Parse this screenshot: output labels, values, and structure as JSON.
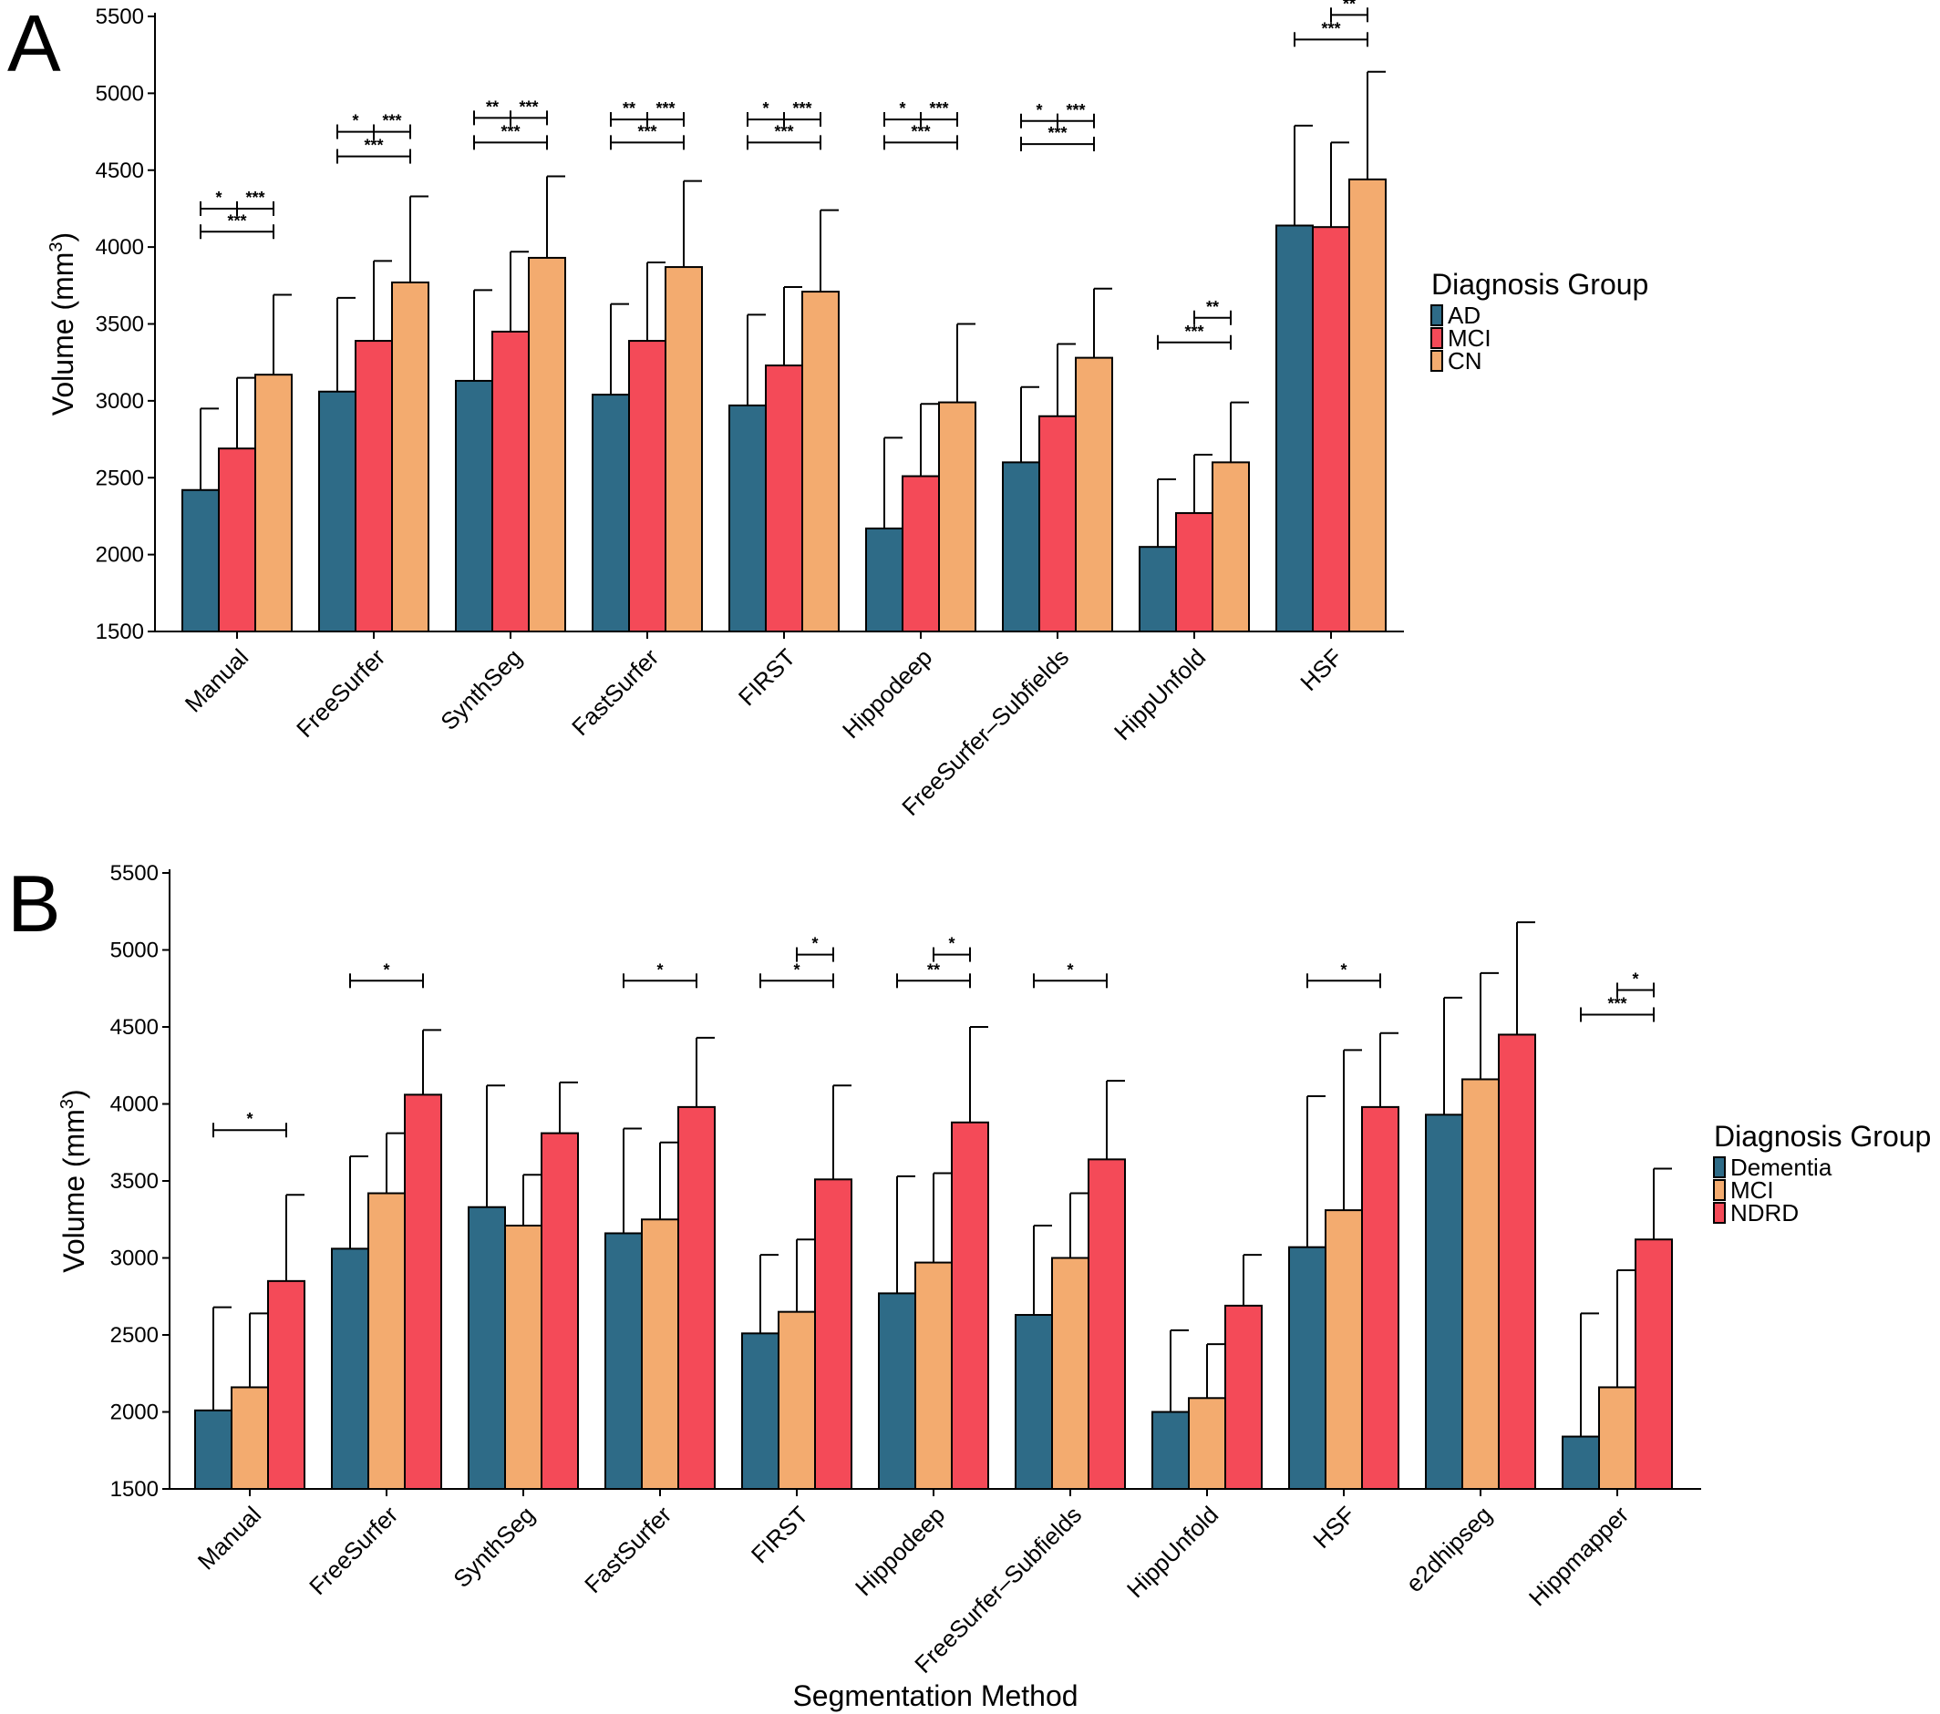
{
  "chart_data": [
    {
      "panel": "A",
      "type": "bar",
      "ylabel": "Volume (mm³)",
      "ylabel_main": "Volume (mm",
      "ylabel_sup": "3",
      "ylabel_end": ")",
      "xlabel": "",
      "ylim": [
        1500,
        5500
      ],
      "yticks": [
        1500,
        2000,
        2500,
        3000,
        3500,
        4000,
        4500,
        5000,
        5500
      ],
      "categories": [
        "Manual",
        "FreeSurfer",
        "SynthSeg",
        "FastSurfer",
        "FIRST",
        "Hippodeep",
        "FreeSurfer–Subfields",
        "HippUnfold",
        "HSF"
      ],
      "legend_title": "Diagnosis Group",
      "legend_position": "right",
      "series": [
        {
          "name": "AD",
          "color": "#2e6b87",
          "values": [
            2420,
            3060,
            3130,
            3040,
            2970,
            2170,
            2600,
            2050,
            4140
          ],
          "error": [
            530,
            610,
            590,
            590,
            590,
            590,
            490,
            440,
            650
          ]
        },
        {
          "name": "MCI",
          "color": "#f44a58",
          "values": [
            2690,
            3390,
            3450,
            3390,
            3230,
            2510,
            2900,
            2270,
            4130
          ],
          "error": [
            460,
            520,
            520,
            510,
            510,
            470,
            470,
            380,
            550
          ]
        },
        {
          "name": "CN",
          "color": "#f3ab6f",
          "values": [
            3170,
            3770,
            3930,
            3870,
            3710,
            2990,
            3280,
            2600,
            4440
          ],
          "error": [
            520,
            560,
            530,
            560,
            530,
            510,
            450,
            390,
            700
          ]
        }
      ],
      "significance": [
        {
          "cat": 0,
          "from": 0,
          "to": 1,
          "y": 4250,
          "label": "*"
        },
        {
          "cat": 0,
          "from": 1,
          "to": 2,
          "y": 4250,
          "label": "***"
        },
        {
          "cat": 0,
          "from": 0,
          "to": 2,
          "y": 4100,
          "label": "***"
        },
        {
          "cat": 1,
          "from": 0,
          "to": 1,
          "y": 4750,
          "label": "*"
        },
        {
          "cat": 1,
          "from": 1,
          "to": 2,
          "y": 4750,
          "label": "***"
        },
        {
          "cat": 1,
          "from": 0,
          "to": 2,
          "y": 4590,
          "label": "***"
        },
        {
          "cat": 2,
          "from": 0,
          "to": 1,
          "y": 4840,
          "label": "**"
        },
        {
          "cat": 2,
          "from": 1,
          "to": 2,
          "y": 4840,
          "label": "***"
        },
        {
          "cat": 2,
          "from": 0,
          "to": 2,
          "y": 4680,
          "label": "***"
        },
        {
          "cat": 3,
          "from": 0,
          "to": 1,
          "y": 4830,
          "label": "**"
        },
        {
          "cat": 3,
          "from": 1,
          "to": 2,
          "y": 4830,
          "label": "***"
        },
        {
          "cat": 3,
          "from": 0,
          "to": 2,
          "y": 4680,
          "label": "***"
        },
        {
          "cat": 4,
          "from": 0,
          "to": 1,
          "y": 4830,
          "label": "*"
        },
        {
          "cat": 4,
          "from": 1,
          "to": 2,
          "y": 4830,
          "label": "***"
        },
        {
          "cat": 4,
          "from": 0,
          "to": 2,
          "y": 4680,
          "label": "***"
        },
        {
          "cat": 5,
          "from": 0,
          "to": 1,
          "y": 4830,
          "label": "*"
        },
        {
          "cat": 5,
          "from": 1,
          "to": 2,
          "y": 4830,
          "label": "***"
        },
        {
          "cat": 5,
          "from": 0,
          "to": 2,
          "y": 4680,
          "label": "***"
        },
        {
          "cat": 6,
          "from": 0,
          "to": 1,
          "y": 4820,
          "label": "*"
        },
        {
          "cat": 6,
          "from": 1,
          "to": 2,
          "y": 4820,
          "label": "***"
        },
        {
          "cat": 6,
          "from": 0,
          "to": 2,
          "y": 4670,
          "label": "***"
        },
        {
          "cat": 7,
          "from": 1,
          "to": 2,
          "y": 3540,
          "label": "**"
        },
        {
          "cat": 7,
          "from": 0,
          "to": 2,
          "y": 3380,
          "label": "***"
        },
        {
          "cat": 8,
          "from": 1,
          "to": 2,
          "y": 5510,
          "label": "**"
        },
        {
          "cat": 8,
          "from": 0,
          "to": 2,
          "y": 5350,
          "label": "***"
        }
      ]
    },
    {
      "panel": "B",
      "type": "bar",
      "ylabel": "Volume (mm³)",
      "ylabel_main": "Volume (mm",
      "ylabel_sup": "3",
      "ylabel_end": ")",
      "xlabel": "Segmentation Method",
      "ylim": [
        1500,
        5500
      ],
      "yticks": [
        1500,
        2000,
        2500,
        3000,
        3500,
        4000,
        4500,
        5000,
        5500
      ],
      "categories": [
        "Manual",
        "FreeSurfer",
        "SynthSeg",
        "FastSurfer",
        "FIRST",
        "Hippodeep",
        "FreeSurfer–Subfields",
        "HippUnfold",
        "HSF",
        "e2dhipseg",
        "Hippmapper"
      ],
      "legend_title": "Diagnosis Group",
      "legend_position": "right",
      "series": [
        {
          "name": "Dementia",
          "color": "#2e6b87",
          "values": [
            2010,
            3060,
            3330,
            3160,
            2510,
            2770,
            2630,
            2000,
            3070,
            3930,
            1840
          ],
          "error": [
            670,
            600,
            790,
            680,
            510,
            760,
            580,
            530,
            980,
            760,
            800
          ]
        },
        {
          "name": "MCI",
          "color": "#f3ab6f",
          "values": [
            2160,
            3420,
            3210,
            3250,
            2650,
            2970,
            3000,
            2090,
            3310,
            4160,
            2160
          ],
          "error": [
            480,
            390,
            330,
            500,
            470,
            580,
            420,
            350,
            1040,
            690,
            760
          ]
        },
        {
          "name": "NDRD",
          "color": "#f44a58",
          "values": [
            2850,
            4060,
            3810,
            3980,
            3510,
            3880,
            3640,
            2690,
            3980,
            4450,
            3120
          ],
          "error": [
            560,
            420,
            330,
            450,
            610,
            620,
            510,
            330,
            480,
            730,
            460
          ]
        }
      ],
      "significance": [
        {
          "cat": 0,
          "from": 0,
          "to": 2,
          "y": 3830,
          "label": "*"
        },
        {
          "cat": 1,
          "from": 0,
          "to": 2,
          "y": 4800,
          "label": "*"
        },
        {
          "cat": 3,
          "from": 0,
          "to": 2,
          "y": 4800,
          "label": "*"
        },
        {
          "cat": 4,
          "from": 1,
          "to": 2,
          "y": 4970,
          "label": "*"
        },
        {
          "cat": 4,
          "from": 0,
          "to": 2,
          "y": 4800,
          "label": "*"
        },
        {
          "cat": 5,
          "from": 1,
          "to": 2,
          "y": 4970,
          "label": "*"
        },
        {
          "cat": 5,
          "from": 0,
          "to": 2,
          "y": 4800,
          "label": "**"
        },
        {
          "cat": 6,
          "from": 0,
          "to": 2,
          "y": 4800,
          "label": "*"
        },
        {
          "cat": 8,
          "from": 0,
          "to": 2,
          "y": 4800,
          "label": "*"
        },
        {
          "cat": 10,
          "from": 1,
          "to": 2,
          "y": 4740,
          "label": "*"
        },
        {
          "cat": 10,
          "from": 0,
          "to": 2,
          "y": 4580,
          "label": "***"
        }
      ]
    }
  ]
}
